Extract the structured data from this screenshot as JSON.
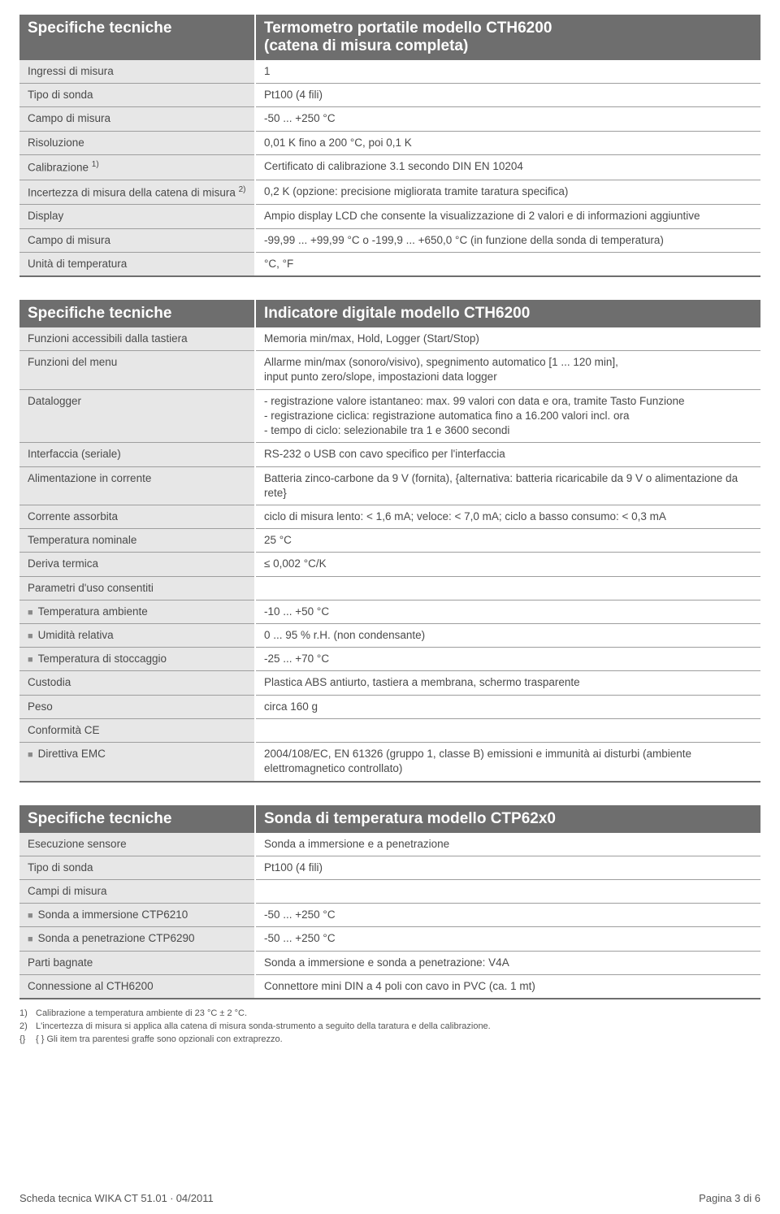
{
  "table1": {
    "header_left": "Specifiche tecniche",
    "header_right_line1": "Termometro portatile modello CTH6200",
    "header_right_line2": "(catena di misura completa)",
    "rows": [
      {
        "l": "Ingressi di misura",
        "r": "1"
      },
      {
        "l": "Tipo di sonda",
        "r": "Pt100 (4 fili)"
      },
      {
        "l": "Campo di misura",
        "r": "-50 ... +250 °C"
      },
      {
        "l": "Risoluzione",
        "r": "0,01 K fino a 200 °C, poi 0,1 K"
      },
      {
        "l_pre": "Calibrazione ",
        "l_sup": "1)",
        "r": "Certificato di calibrazione 3.1 secondo DIN EN 10204"
      },
      {
        "l_pre": "Incertezza di misura della catena di misura ",
        "l_sup": "2)",
        "r": "0,2 K (opzione: precisione migliorata tramite taratura specifica)"
      },
      {
        "l": "Display",
        "r": "Ampio display LCD che consente la visualizzazione di 2 valori e di informazioni aggiuntive"
      },
      {
        "l": "Campo di misura",
        "r": "-99,99 ... +99,99 °C o -199,9 ... +650,0 °C (in funzione della sonda di temperatura)"
      },
      {
        "l": "Unità di temperatura",
        "r": "°C, °F"
      }
    ]
  },
  "table2": {
    "header_left": "Specifiche tecniche",
    "header_right": "Indicatore digitale modello CTH6200",
    "rows": [
      {
        "l": "Funzioni accessibili dalla tastiera",
        "r": "Memoria min/max, Hold, Logger (Start/Stop)"
      },
      {
        "l": "Funzioni del menu",
        "r": "Allarme min/max (sonoro/visivo), spegnimento automatico [1 ... 120 min],\ninput punto zero/slope, impostazioni data logger"
      },
      {
        "l": "Datalogger",
        "r": "- registrazione valore istantaneo: max. 99 valori con data e ora, tramite Tasto Funzione\n- registrazione ciclica: registrazione automatica fino a 16.200 valori incl. ora\n- tempo di ciclo: selezionabile tra 1 e 3600 secondi"
      },
      {
        "l": "Interfaccia (seriale)",
        "r": "RS-232 o USB con cavo specifico per l'interfaccia"
      },
      {
        "l": "Alimentazione in corrente",
        "r": "Batteria zinco-carbone da 9 V (fornita), {alternativa: batteria ricaricabile da 9 V o alimentazione da rete}"
      },
      {
        "l": "Corrente assorbita",
        "r": "ciclo di misura lento: < 1,6 mA; veloce: < 7,0 mA; ciclo a basso consumo: < 0,3 mA"
      },
      {
        "l": "Temperatura nominale",
        "r": " 25 °C"
      },
      {
        "l": "Deriva termica",
        "r": "≤ 0,002 °C/K"
      },
      {
        "l": "Parametri d'uso consentiti",
        "r": ""
      },
      {
        "bullet": true,
        "l": "Temperatura ambiente",
        "r": "-10 ... +50 °C"
      },
      {
        "bullet": true,
        "l": "Umidità relativa",
        "r": "0 ... 95 % r.H. (non condensante)"
      },
      {
        "bullet": true,
        "l": "Temperatura di stoccaggio",
        "r": "-25 ... +70 °C"
      },
      {
        "l": "Custodia",
        "r": "Plastica ABS antiurto, tastiera a membrana, schermo trasparente"
      },
      {
        "l": "Peso",
        "r": "circa 160 g"
      },
      {
        "l": "Conformità CE",
        "r": ""
      },
      {
        "bullet": true,
        "l": "Direttiva EMC",
        "r": "2004/108/EC, EN 61326 (gruppo 1, classe B) emissioni e immunità ai disturbi (ambiente elettromagnetico controllato)"
      }
    ]
  },
  "table3": {
    "header_left": "Specifiche tecniche",
    "header_right": "Sonda di temperatura modello CTP62x0",
    "rows": [
      {
        "l": "Esecuzione sensore",
        "r": "Sonda a immersione e a penetrazione"
      },
      {
        "l": "Tipo di sonda",
        "r": "Pt100 (4 fili)"
      },
      {
        "l": "Campi di misura",
        "r": ""
      },
      {
        "bullet": true,
        "l": "Sonda a immersione CTP6210",
        "r": "-50 ... +250 °C"
      },
      {
        "bullet": true,
        "l": "Sonda a penetrazione CTP6290",
        "r": "-50 ... +250 °C"
      },
      {
        "l": "Parti bagnate",
        "r": "Sonda a immersione e sonda a penetrazione: V4A"
      },
      {
        "l": "Connessione al CTH6200",
        "r": "Connettore mini DIN a 4 poli con cavo in PVC (ca. 1 mt)"
      }
    ]
  },
  "footnotes": [
    {
      "tag": "1)",
      "text": "Calibrazione a temperatura ambiente di 23 °C ± 2 °C."
    },
    {
      "tag": "2)",
      "text": "L'incertezza di misura si applica alla catena di misura sonda-strumento a seguito della taratura e della calibrazione."
    },
    {
      "tag": "{}",
      "text": "{ } Gli item tra parentesi graffe sono opzionali con extraprezzo."
    }
  ],
  "footer_left": "Scheda tecnica WIKA CT 51.01 ∙ 04/2011",
  "footer_right": "Pagina 3 di 6"
}
